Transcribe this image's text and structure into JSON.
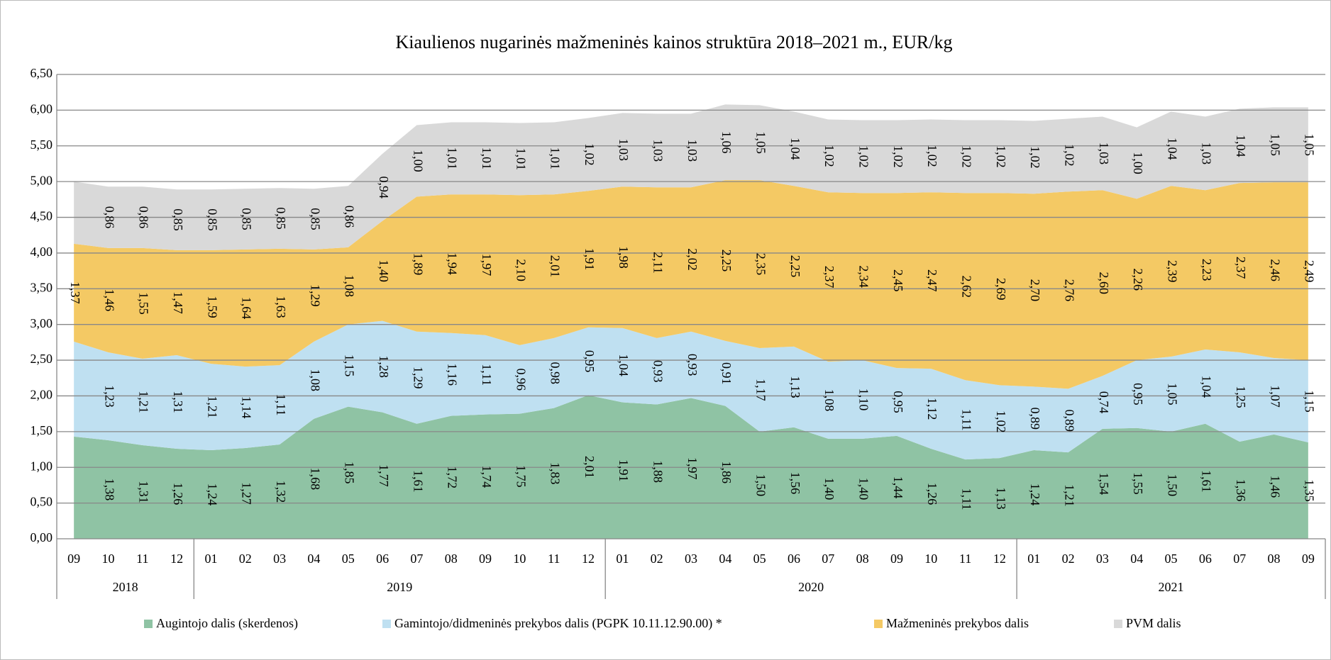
{
  "chart_data": {
    "type": "stacked-area",
    "title": "Kiaulienos nugarinės mažmeninės kainos struktūra 2018–2021 m., EUR/kg",
    "categories": [
      "09",
      "10",
      "11",
      "12",
      "01",
      "02",
      "03",
      "04",
      "05",
      "06",
      "07",
      "08",
      "09",
      "10",
      "11",
      "12",
      "01",
      "02",
      "03",
      "04",
      "05",
      "06",
      "07",
      "08",
      "09",
      "10",
      "11",
      "12",
      "01",
      "02",
      "03",
      "04",
      "05",
      "06",
      "07",
      "08",
      "09"
    ],
    "category_groups": [
      {
        "label": "2018",
        "span": 4
      },
      {
        "label": "2019",
        "span": 12
      },
      {
        "label": "2020",
        "span": 12
      },
      {
        "label": "2021",
        "span": 9
      }
    ],
    "ylim": [
      0,
      6.5
    ],
    "yticks": [
      {
        "value": 0,
        "label": "0,00"
      },
      {
        "value": 0.5,
        "label": "0,50"
      },
      {
        "value": 1,
        "label": "1,00"
      },
      {
        "value": 1.5,
        "label": "1,50"
      },
      {
        "value": 2,
        "label": "2,00"
      },
      {
        "value": 2.5,
        "label": "2,50"
      },
      {
        "value": 3,
        "label": "3,00"
      },
      {
        "value": 3.5,
        "label": "3,50"
      },
      {
        "value": 4,
        "label": "4,00"
      },
      {
        "value": 4.5,
        "label": "4,50"
      },
      {
        "value": 5,
        "label": "5,00"
      },
      {
        "value": 5.5,
        "label": "5,50"
      },
      {
        "value": 6,
        "label": "6,00"
      },
      {
        "value": 6.5,
        "label": "6,50"
      }
    ],
    "grid": true,
    "series": [
      {
        "name": "Augintojo dalis (skerdenos)",
        "color": "#8fc3a4",
        "values": [
          1.43,
          1.38,
          1.31,
          1.26,
          1.24,
          1.27,
          1.32,
          1.68,
          1.85,
          1.77,
          1.61,
          1.72,
          1.74,
          1.75,
          1.83,
          2.01,
          1.91,
          1.88,
          1.97,
          1.86,
          1.5,
          1.56,
          1.4,
          1.4,
          1.44,
          1.26,
          1.11,
          1.13,
          1.24,
          1.21,
          1.54,
          1.55,
          1.5,
          1.61,
          1.36,
          1.46,
          1.35
        ],
        "value_labels": [
          null,
          "1,38",
          "1,31",
          "1,26",
          "1,24",
          "1,27",
          "1,32",
          "1,68",
          "1,85",
          "1,77",
          "1,61",
          "1,72",
          "1,74",
          "1,75",
          "1,83",
          "2,01",
          "1,91",
          "1,88",
          "1,97",
          "1,86",
          "1,50",
          "1,56",
          "1,40",
          "1,40",
          "1,44",
          "1,26",
          "1,11",
          "1,13",
          "1,24",
          "1,21",
          "1,54",
          "1,55",
          "1,50",
          "1,61",
          "1,36",
          "1,46",
          "1,35"
        ]
      },
      {
        "name": "Gamintojo/didmeninės prekybos dalis (PGPK 10.11.12.90.00) *",
        "color": "#bfe0f1",
        "values": [
          1.33,
          1.23,
          1.21,
          1.31,
          1.21,
          1.14,
          1.11,
          1.08,
          1.15,
          1.28,
          1.29,
          1.16,
          1.11,
          0.96,
          0.98,
          0.95,
          1.04,
          0.93,
          0.93,
          0.91,
          1.17,
          1.13,
          1.08,
          1.1,
          0.95,
          1.12,
          1.11,
          1.02,
          0.89,
          0.89,
          0.74,
          0.95,
          1.05,
          1.04,
          1.25,
          1.07,
          1.15
        ],
        "value_labels": [
          null,
          "1,23",
          "1,21",
          "1,31",
          "1,21",
          "1,14",
          "1,11",
          "1,08",
          "1,15",
          "1,28",
          "1,29",
          "1,16",
          "1,11",
          "0,96",
          "0,98",
          "0,95",
          "1,04",
          "0,93",
          "0,93",
          "0,91",
          "1,17",
          "1,13",
          "1,08",
          "1,10",
          "0,95",
          "1,12",
          "1,11",
          "1,02",
          "0,89",
          "0,89",
          "0,74",
          "0,95",
          "1,05",
          "1,04",
          "1,25",
          "1,07",
          "1,15"
        ]
      },
      {
        "name": "Mažmeninės prekybos dalis",
        "color": "#f4c964",
        "values": [
          1.37,
          1.46,
          1.55,
          1.47,
          1.59,
          1.64,
          1.63,
          1.29,
          1.08,
          1.4,
          1.89,
          1.94,
          1.97,
          2.1,
          2.01,
          1.91,
          1.98,
          2.11,
          2.02,
          2.25,
          2.35,
          2.25,
          2.37,
          2.34,
          2.45,
          2.47,
          2.62,
          2.69,
          2.7,
          2.76,
          2.6,
          2.26,
          2.39,
          2.23,
          2.37,
          2.46,
          2.49
        ],
        "value_labels": [
          "1,37",
          "1,46",
          "1,55",
          "1,47",
          "1,59",
          "1,64",
          "1,63",
          "1,29",
          "1,08",
          "1,40",
          "1,89",
          "1,94",
          "1,97",
          "2,10",
          "2,01",
          "1,91",
          "1,98",
          "2,11",
          "2,02",
          "2,25",
          "2,35",
          "2,25",
          "2,37",
          "2,34",
          "2,45",
          "2,47",
          "2,62",
          "2,69",
          "2,70",
          "2,76",
          "2,60",
          "2,26",
          "2,39",
          "2,23",
          "2,37",
          "2,46",
          "2,49"
        ]
      },
      {
        "name": "PVM dalis",
        "color": "#d9d9d9",
        "values": [
          0.87,
          0.86,
          0.86,
          0.85,
          0.85,
          0.85,
          0.85,
          0.85,
          0.86,
          0.94,
          1.0,
          1.01,
          1.01,
          1.01,
          1.01,
          1.02,
          1.03,
          1.03,
          1.03,
          1.06,
          1.05,
          1.04,
          1.02,
          1.02,
          1.02,
          1.02,
          1.02,
          1.02,
          1.02,
          1.02,
          1.03,
          1.0,
          1.04,
          1.03,
          1.04,
          1.05,
          1.05
        ],
        "value_labels": [
          null,
          "0,86",
          "0,86",
          "0,85",
          "0,85",
          "0,85",
          "0,85",
          "0,85",
          "0,86",
          "0,94",
          "1,00",
          "1,01",
          "1,01",
          "1,01",
          "1,01",
          "1,02",
          "1,03",
          "1,03",
          "1,03",
          "1,06",
          "1,05",
          "1,04",
          "1,02",
          "1,02",
          "1,02",
          "1,02",
          "1,02",
          "1,02",
          "1,02",
          "1,02",
          "1,03",
          "1,00",
          "1,04",
          "1,03",
          "1,04",
          "1,05",
          "1,05"
        ]
      }
    ]
  }
}
